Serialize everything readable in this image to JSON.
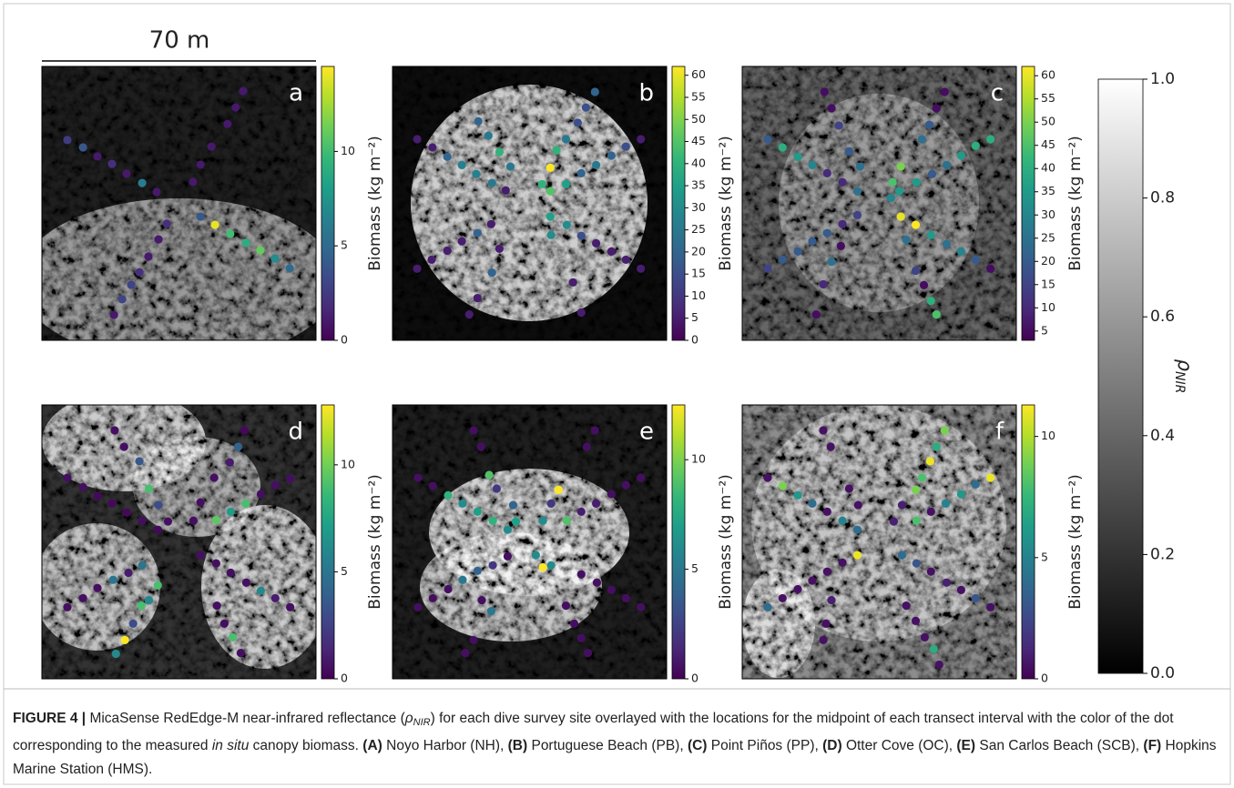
{
  "figure": {
    "scale_bar": {
      "label": "70 m",
      "length": 70
    },
    "nir_colorbar": {
      "clim": [
        0,
        1
      ],
      "colormap": "gray",
      "ticks": [
        {
          "value": 0,
          "label": "0.0"
        },
        {
          "value": 0.2,
          "label": "0.2"
        },
        {
          "value": 0.4,
          "label": "0.4"
        },
        {
          "value": 0.6,
          "label": "0.6"
        },
        {
          "value": 0.8,
          "label": "0.8"
        },
        {
          "value": 1,
          "label": "1.0"
        }
      ],
      "label": {
        "symbol": "ρ",
        "subscript": "NIR"
      }
    },
    "caption": [
      {
        "text": "FIGURE 4 | ",
        "style": "bold"
      },
      {
        "text": "MicaSense RedEdge-M near-infrared reflectance (",
        "style": "normal"
      },
      {
        "text": "ρ",
        "style": "italic"
      },
      {
        "text": "NIR",
        "style": "sub"
      },
      {
        "text": ")  for each dive survey site overlayed with the locations for the midpoint of each transect interval with the color of the dot corresponding to the measured ",
        "style": "normal"
      },
      {
        "text": "in situ",
        "style": "italic"
      },
      {
        "text": " canopy biomass. ",
        "style": "normal"
      },
      {
        "text": "(A)",
        "style": "bold"
      },
      {
        "text": " Noyo Harbor (NH), ",
        "style": "normal"
      },
      {
        "text": "(B)",
        "style": "bold"
      },
      {
        "text": " Portuguese Beach (PB), ",
        "style": "normal"
      },
      {
        "text": "(C)",
        "style": "bold"
      },
      {
        "text": " Point Piños (PP), ",
        "style": "normal"
      },
      {
        "text": "(D)",
        "style": "bold"
      },
      {
        "text": " Otter Cove (OC), ",
        "style": "normal"
      },
      {
        "text": "(E)",
        "style": "bold"
      },
      {
        "text": " San Carlos Beach (SCB), ",
        "style": "normal"
      },
      {
        "text": "(F)",
        "style": "bold"
      },
      {
        "text": " Hopkins Marine Station (HMS).",
        "style": "normal"
      }
    ]
  },
  "chart_data": [
    {
      "type": "scatter",
      "panel_label": "a",
      "colormap": "viridis",
      "cbar_label": "Biomass (kg m⁻²)",
      "xlim": [
        0,
        70
      ],
      "ylim": [
        0,
        70
      ],
      "clim": [
        0,
        14.5
      ],
      "cbar_ticks": [
        0,
        5,
        10
      ],
      "x": [
        6.5,
        10.5,
        14.2,
        17.9,
        21.6,
        25.6,
        29.3,
        51.4,
        49.5,
        47.4,
        43.3,
        40.5,
        38.6,
        40.5,
        44.2,
        48.1,
        52.1,
        55.8,
        59.5,
        63.3,
        31.9,
        29.8,
        27.2,
        24.9,
        22.8,
        20.5,
        18.4
      ],
      "y": [
        18.8,
        20.7,
        23.0,
        24.9,
        27.4,
        29.8,
        32.1,
        6.3,
        10.5,
        14.7,
        20.5,
        25.1,
        29.5,
        38.4,
        40.5,
        42.8,
        45.1,
        47.0,
        49.1,
        51.6,
        40.2,
        44.2,
        48.6,
        52.6,
        55.8,
        59.5,
        63.5
      ],
      "values": [
        2.5,
        4,
        1,
        2,
        1,
        6,
        1,
        1,
        1,
        1,
        1,
        1,
        1,
        4,
        14,
        10,
        9,
        11,
        7,
        5,
        2,
        1,
        1,
        2,
        3,
        3,
        1
      ]
    },
    {
      "type": "scatter",
      "panel_label": "b",
      "colormap": "viridis",
      "cbar_label": "Biomass (kg m⁻²)",
      "xlim": [
        0,
        70
      ],
      "ylim": [
        0,
        70
      ],
      "clim": [
        0,
        62
      ],
      "cbar_ticks": [
        0,
        5,
        10,
        15,
        20,
        25,
        30,
        35,
        40,
        45,
        50,
        55,
        60
      ],
      "x": [
        6.3,
        10.2,
        14.0,
        17.7,
        21.4,
        25.4,
        28.9,
        21.9,
        24.5,
        27.3,
        30.1,
        51.7,
        49.4,
        47.3,
        44.3,
        41.9,
        40.3,
        38.2,
        44.3,
        40.3,
        63.4,
        59.6,
        55.9,
        52.0,
        48.2,
        6.3,
        10.0,
        14.0,
        17.7,
        21.7,
        25.2,
        40.3,
        40.5,
        44.5,
        48.2,
        52.0,
        55.9,
        59.6,
        63.4,
        27.3,
        25.4,
        21.7,
        19.6,
        46.1,
        48.2
      ],
      "y": [
        18.6,
        20.7,
        23.1,
        25.2,
        27.5,
        29.8,
        31.7,
        14.0,
        17.7,
        21.9,
        25.6,
        6.5,
        10.5,
        14.4,
        18.6,
        21.4,
        25.9,
        30.1,
        30.1,
        31.9,
        18.6,
        20.5,
        22.8,
        25.2,
        27.3,
        51.7,
        49.4,
        47.1,
        44.7,
        42.6,
        40.3,
        38.4,
        43.1,
        40.5,
        43.3,
        45.2,
        47.3,
        49.4,
        51.7,
        46.6,
        52.7,
        59.2,
        63.4,
        55.2,
        62.9
      ],
      "values": [
        5,
        5,
        20,
        27,
        27,
        25,
        5,
        20,
        25,
        40,
        25,
        20,
        15,
        15,
        25,
        40,
        62,
        40,
        35,
        45,
        5,
        15,
        20,
        25,
        20,
        5,
        5,
        5,
        5,
        20,
        5,
        35,
        30,
        30,
        15,
        5,
        5,
        5,
        5,
        5,
        20,
        5,
        5,
        5,
        5
      ]
    },
    {
      "type": "scatter",
      "panel_label": "c",
      "colormap": "viridis",
      "cbar_label": "Biomass (kg m⁻²)",
      "xlim": [
        0,
        70
      ],
      "ylim": [
        0,
        70
      ],
      "clim": [
        3,
        62
      ],
      "cbar_ticks": [
        5,
        10,
        15,
        20,
        25,
        30,
        35,
        40,
        45,
        50,
        55,
        60
      ],
      "x": [
        6.5,
        10.3,
        14.2,
        17.9,
        21.7,
        25.6,
        29.4,
        21.0,
        22.8,
        24.7,
        27.3,
        30.1,
        51.7,
        49.6,
        47.8,
        45.9,
        40.5,
        38.4,
        40.1,
        38.0,
        40.5,
        44.3,
        48.2,
        52.2,
        55.9,
        59.6,
        63.4,
        63.4,
        59.6,
        55.9,
        52.2,
        48.5,
        44.5,
        6.5,
        10.3,
        14.2,
        17.9,
        21.7,
        25.6,
        29.4,
        25.2,
        22.8,
        20.7,
        18.9,
        44.3,
        46.4,
        48.2,
        49.6,
        41.9
      ],
      "y": [
        18.6,
        20.7,
        23.1,
        25.2,
        27.3,
        29.6,
        31.9,
        6.5,
        10.7,
        15.1,
        21.7,
        25.6,
        6.5,
        10.7,
        14.9,
        18.6,
        25.6,
        29.6,
        31.9,
        33.6,
        38.4,
        40.5,
        43.1,
        45.4,
        47.3,
        49.4,
        51.7,
        18.6,
        20.3,
        22.8,
        25.2,
        27.5,
        29.6,
        51.7,
        49.4,
        47.3,
        44.7,
        42.6,
        40.3,
        38.0,
        45.9,
        49.9,
        55.7,
        63.4,
        52.2,
        55.9,
        59.9,
        63.4,
        44.3
      ],
      "values": [
        20,
        40,
        35,
        30,
        10,
        10,
        25,
        5,
        5,
        15,
        20,
        25,
        5,
        5,
        20,
        25,
        50,
        45,
        35,
        30,
        60,
        62,
        35,
        25,
        30,
        20,
        5,
        40,
        40,
        35,
        25,
        20,
        35,
        15,
        20,
        20,
        20,
        20,
        10,
        15,
        5,
        25,
        10,
        5,
        15,
        5,
        40,
        45,
        25
      ]
    },
    {
      "type": "scatter",
      "panel_label": "d",
      "colormap": "viridis",
      "cbar_label": "Biomass (kg m⁻²)",
      "xlim": [
        0,
        70
      ],
      "ylim": [
        0,
        70
      ],
      "clim": [
        0,
        12.8
      ],
      "cbar_ticks": [
        0,
        5,
        10
      ],
      "x": [
        6.5,
        10.5,
        14.2,
        17.9,
        21.7,
        25.6,
        29.6,
        18.6,
        21.0,
        24.9,
        27.3,
        29.8,
        32.2,
        51.7,
        50.1,
        48.0,
        44.0,
        40.5,
        38.7,
        44.5,
        48.2,
        52.0,
        63.4,
        59.6,
        55.9,
        6.5,
        10.5,
        14.2,
        18.2,
        22.1,
        25.6,
        29.6,
        27.3,
        25.4,
        23.3,
        21.2,
        18.9,
        40.5,
        44.5,
        48.2,
        52.2,
        55.9,
        59.6,
        63.4,
        44.7,
        46.6,
        48.7,
        50.8
      ],
      "y": [
        18.6,
        21.0,
        23.3,
        25.2,
        27.5,
        29.6,
        31.9,
        6.5,
        10.7,
        14.4,
        21.4,
        25.6,
        29.8,
        6.5,
        10.7,
        14.7,
        18.6,
        24.9,
        29.6,
        29.4,
        27.3,
        25.2,
        18.9,
        20.5,
        22.8,
        51.7,
        49.4,
        46.8,
        44.7,
        42.9,
        41.0,
        46.1,
        49.9,
        51.3,
        55.9,
        60.1,
        63.6,
        38.4,
        40.5,
        42.9,
        45.4,
        47.5,
        49.4,
        51.7,
        51.3,
        55.9,
        59.4,
        63.4
      ],
      "values": [
        0.5,
        0.5,
        0.3,
        0.3,
        0.3,
        0.5,
        0.3,
        0.5,
        0.5,
        3.5,
        9,
        3,
        0.5,
        0.3,
        4,
        1,
        0.5,
        0.5,
        0.5,
        9.5,
        7,
        9,
        0.5,
        0.5,
        0.5,
        0.5,
        0.5,
        0.5,
        5,
        1,
        5,
        9,
        6,
        9,
        3,
        12.8,
        6,
        0.5,
        0.5,
        0.5,
        0.5,
        6,
        1,
        0.5,
        0.5,
        0.5,
        9,
        0.5
      ]
    },
    {
      "type": "scatter",
      "panel_label": "e",
      "colormap": "viridis",
      "cbar_label": "Biomass (kg m⁻²)",
      "xlim": [
        0,
        70
      ],
      "ylim": [
        0,
        70
      ],
      "clim": [
        0,
        12.5
      ],
      "cbar_ticks": [
        0,
        5,
        10
      ],
      "x": [
        6.5,
        10.3,
        14.2,
        17.9,
        21.7,
        25.6,
        29.4,
        20.7,
        22.6,
        24.7,
        26.6,
        30.8,
        31.5,
        51.7,
        49.6,
        42.4,
        40.5,
        38.4,
        44.5,
        63.4,
        59.6,
        55.9,
        52.0,
        48.2,
        6.5,
        10.3,
        14.2,
        17.9,
        21.7,
        25.6,
        29.4,
        36.6,
        40.5,
        38.4,
        25.2,
        22.8,
        20.7,
        18.6,
        48.2,
        52.2,
        55.9,
        59.6,
        63.4,
        44.3,
        46.4,
        48.2,
        49.9
      ],
      "y": [
        18.6,
        20.7,
        23.1,
        25.2,
        27.3,
        29.6,
        31.9,
        6.5,
        10.7,
        17.9,
        21.4,
        25.6,
        29.8,
        6.5,
        10.7,
        21.7,
        25.2,
        29.6,
        29.6,
        18.6,
        20.5,
        22.8,
        25.2,
        27.3,
        51.7,
        49.4,
        47.1,
        44.7,
        42.4,
        41.0,
        38.7,
        38.4,
        41.0,
        41.5,
        52.7,
        49.9,
        60.1,
        63.4,
        43.3,
        45.4,
        47.3,
        49.4,
        51.7,
        51.3,
        55.9,
        59.6,
        63.4
      ],
      "values": [
        0.5,
        0.5,
        8,
        6,
        7,
        8,
        6,
        0.5,
        0.5,
        9,
        2,
        4,
        7,
        0.5,
        0.5,
        12.5,
        2,
        6,
        9,
        0.5,
        0.5,
        0.5,
        1,
        1,
        0.5,
        0.5,
        0.5,
        5,
        4,
        2,
        0.5,
        6,
        6,
        12.5,
        5,
        0.5,
        0.5,
        0.5,
        0.5,
        0.5,
        0.5,
        0.5,
        0.5,
        0.5,
        0.5,
        0.5,
        0.5
      ]
    },
    {
      "type": "scatter",
      "panel_label": "f",
      "colormap": "viridis",
      "cbar_label": "Biomass (kg m⁻²)",
      "xlim": [
        0,
        70
      ],
      "ylim": [
        0,
        70
      ],
      "clim": [
        0,
        11.3
      ],
      "cbar_ticks": [
        0,
        5,
        10
      ],
      "x": [
        6.5,
        10.3,
        14.2,
        17.9,
        21.7,
        25.6,
        29.4,
        20.7,
        22.6,
        27.3,
        29.6,
        51.7,
        49.6,
        48.0,
        45.9,
        44.3,
        40.8,
        38.7,
        44.5,
        63.4,
        59.6,
        55.9,
        52.0,
        48.2,
        6.5,
        10.3,
        14.2,
        17.9,
        21.7,
        25.6,
        29.4,
        40.8,
        44.5,
        48.2,
        52.2,
        55.9,
        59.6,
        63.4,
        22.8,
        21.4,
        20.7,
        41.9,
        44.3,
        46.6,
        48.9,
        50.3
      ],
      "y": [
        18.6,
        20.7,
        23.1,
        25.2,
        27.3,
        29.6,
        31.9,
        6.5,
        10.7,
        21.4,
        25.6,
        6.5,
        10.7,
        14.4,
        18.6,
        21.7,
        25.6,
        29.8,
        29.6,
        18.6,
        20.3,
        22.8,
        25.2,
        27.3,
        51.7,
        49.4,
        47.1,
        44.9,
        42.6,
        40.3,
        38.4,
        38.4,
        40.5,
        42.6,
        45.4,
        47.3,
        49.4,
        51.7,
        49.9,
        55.9,
        60.1,
        51.3,
        55.2,
        59.4,
        62.4,
        66.4
      ],
      "values": [
        0.5,
        9,
        6,
        4,
        0.5,
        5,
        4,
        0.5,
        0.5,
        0.5,
        0.5,
        9,
        7,
        11,
        8,
        9,
        1,
        1,
        8,
        11,
        4,
        6,
        5,
        0.5,
        4,
        0.5,
        0.5,
        0.5,
        0.5,
        0.5,
        11,
        4,
        3,
        0.5,
        1,
        0.5,
        3,
        0.5,
        1,
        0.5,
        0.5,
        0.5,
        0.5,
        0.5,
        7,
        0.5
      ]
    }
  ]
}
